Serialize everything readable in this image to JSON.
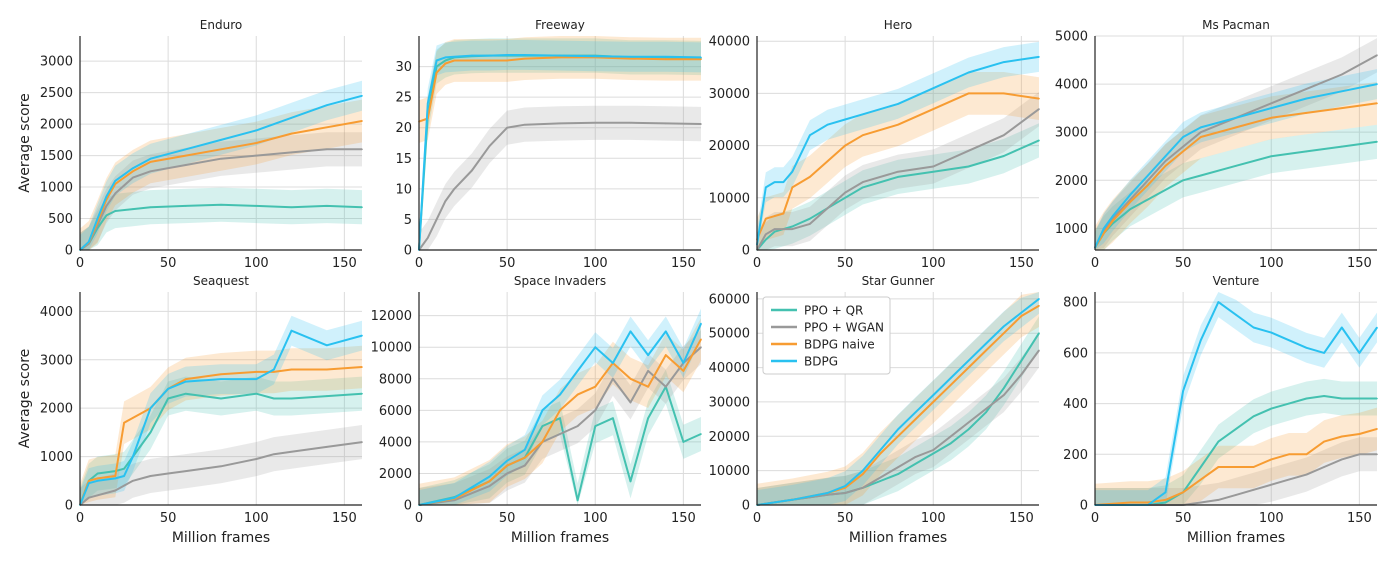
{
  "figure": {
    "ylabel": "Average score",
    "xlabel": "Million frames",
    "legend": {
      "placement": "inside Star Gunner panel, top-left",
      "entries": [
        "PPO + QR",
        "PPO + WGAN",
        "BDPG naive",
        "BDPG"
      ]
    },
    "colors": {
      "PPO + QR": "#44c1b0",
      "PPO + WGAN": "#999999",
      "BDPG naive": "#f79c32",
      "BDPG": "#29c1f0",
      "grid": "#dcdcdc",
      "axis": "#222222"
    }
  },
  "chart_data": [
    {
      "type": "line",
      "title": "Enduro",
      "xlim": [
        0,
        160
      ],
      "ylim": [
        0,
        3400
      ],
      "xticks": [
        0,
        50,
        100,
        150
      ],
      "yticks": [
        0,
        500,
        1000,
        1500,
        2000,
        2500,
        3000
      ],
      "x": [
        0,
        5,
        10,
        15,
        20,
        30,
        40,
        60,
        80,
        100,
        120,
        140,
        160
      ],
      "series": [
        {
          "name": "PPO + QR",
          "values": [
            0,
            100,
            350,
            550,
            620,
            650,
            680,
            700,
            720,
            700,
            680,
            700,
            680
          ]
        },
        {
          "name": "PPO + WGAN",
          "values": [
            0,
            100,
            400,
            700,
            900,
            1150,
            1250,
            1350,
            1450,
            1500,
            1550,
            1600,
            1600
          ]
        },
        {
          "name": "BDPG naive",
          "values": [
            0,
            120,
            450,
            800,
            1050,
            1250,
            1400,
            1500,
            1600,
            1700,
            1850,
            1950,
            2050
          ]
        },
        {
          "name": "BDPG",
          "values": [
            0,
            130,
            500,
            850,
            1100,
            1300,
            1450,
            1600,
            1750,
            1900,
            2100,
            2300,
            2450
          ]
        }
      ]
    },
    {
      "type": "line",
      "title": "Freeway",
      "xlim": [
        0,
        160
      ],
      "ylim": [
        0,
        35
      ],
      "xticks": [
        0,
        50,
        100,
        150
      ],
      "yticks": [
        0,
        5,
        10,
        15,
        20,
        25,
        30
      ],
      "x": [
        0,
        5,
        10,
        15,
        20,
        30,
        40,
        50,
        60,
        80,
        100,
        120,
        140,
        160
      ],
      "series": [
        {
          "name": "PPO + QR",
          "values": [
            0,
            22,
            30,
            31,
            31.5,
            31.7,
            31.8,
            31.8,
            31.8,
            31.8,
            31.8,
            31.5,
            31.5,
            31.4
          ]
        },
        {
          "name": "PPO + WGAN",
          "values": [
            0,
            2,
            5,
            8,
            10,
            13,
            17,
            20,
            20.5,
            20.7,
            20.8,
            20.8,
            20.7,
            20.6
          ]
        },
        {
          "name": "BDPG naive",
          "values": [
            21,
            21.5,
            29,
            30.5,
            31,
            31,
            31,
            31,
            31.3,
            31.5,
            31.5,
            31.3,
            31.2,
            31.2
          ]
        },
        {
          "name": "BDPG",
          "values": [
            0,
            24,
            31,
            31.5,
            31.6,
            31.8,
            31.8,
            31.9,
            31.9,
            31.8,
            31.7,
            31.6,
            31.6,
            31.5
          ]
        }
      ]
    },
    {
      "type": "line",
      "title": "Hero",
      "xlim": [
        0,
        160
      ],
      "ylim": [
        0,
        41000
      ],
      "xticks": [
        0,
        50,
        100,
        150
      ],
      "yticks": [
        0,
        10000,
        20000,
        30000,
        40000
      ],
      "x": [
        0,
        5,
        10,
        15,
        20,
        30,
        40,
        50,
        60,
        80,
        100,
        120,
        140,
        160
      ],
      "series": [
        {
          "name": "PPO + QR",
          "values": [
            0,
            2000,
            3500,
            4000,
            4500,
            6000,
            8000,
            10000,
            12000,
            14000,
            15000,
            16000,
            18000,
            21000
          ]
        },
        {
          "name": "PPO + WGAN",
          "values": [
            0,
            3000,
            4000,
            4000,
            4000,
            5000,
            8000,
            11000,
            13000,
            15000,
            16000,
            19000,
            22000,
            27000
          ]
        },
        {
          "name": "BDPG naive",
          "values": [
            2000,
            6000,
            6500,
            7000,
            12000,
            14000,
            17000,
            20000,
            22000,
            24000,
            27000,
            30000,
            30000,
            29000
          ]
        },
        {
          "name": "BDPG",
          "values": [
            1000,
            12000,
            13000,
            13000,
            15000,
            22000,
            24000,
            25000,
            26000,
            28000,
            31000,
            34000,
            36000,
            37000
          ]
        }
      ]
    },
    {
      "type": "line",
      "title": "Ms Pacman",
      "xlim": [
        0,
        160
      ],
      "ylim": [
        550,
        5000
      ],
      "xticks": [
        0,
        50,
        100,
        150
      ],
      "yticks": [
        1000,
        2000,
        3000,
        4000,
        5000
      ],
      "x": [
        0,
        5,
        10,
        20,
        30,
        40,
        50,
        60,
        80,
        100,
        120,
        140,
        160
      ],
      "series": [
        {
          "name": "PPO + QR",
          "values": [
            600,
            900,
            1100,
            1400,
            1600,
            1800,
            2000,
            2100,
            2300,
            2500,
            2600,
            2700,
            2800
          ]
        },
        {
          "name": "PPO + WGAN",
          "values": [
            600,
            950,
            1200,
            1600,
            2000,
            2400,
            2700,
            3000,
            3300,
            3600,
            3900,
            4200,
            4600
          ]
        },
        {
          "name": "BDPG naive",
          "values": [
            600,
            900,
            1150,
            1550,
            1900,
            2300,
            2600,
            2900,
            3100,
            3300,
            3400,
            3500,
            3600
          ]
        },
        {
          "name": "BDPG",
          "values": [
            600,
            1000,
            1250,
            1700,
            2100,
            2500,
            2900,
            3100,
            3300,
            3500,
            3700,
            3850,
            4000
          ]
        }
      ]
    },
    {
      "type": "line",
      "title": "Seaquest",
      "xlim": [
        0,
        160
      ],
      "ylim": [
        0,
        4400
      ],
      "xticks": [
        0,
        50,
        100,
        150
      ],
      "yticks": [
        0,
        1000,
        2000,
        3000,
        4000
      ],
      "x": [
        0,
        5,
        10,
        20,
        25,
        30,
        40,
        50,
        60,
        80,
        100,
        110,
        120,
        140,
        160
      ],
      "series": [
        {
          "name": "PPO + QR",
          "values": [
            0,
            500,
            650,
            700,
            750,
            1000,
            1500,
            2200,
            2300,
            2200,
            2300,
            2200,
            2200,
            2250,
            2300
          ]
        },
        {
          "name": "PPO + WGAN",
          "values": [
            0,
            150,
            200,
            300,
            400,
            500,
            600,
            650,
            700,
            800,
            950,
            1050,
            1100,
            1200,
            1300
          ]
        },
        {
          "name": "BDPG naive",
          "values": [
            0,
            500,
            550,
            600,
            1700,
            1800,
            2000,
            2400,
            2600,
            2700,
            2750,
            2750,
            2800,
            2800,
            2850
          ]
        },
        {
          "name": "BDPG",
          "values": [
            0,
            450,
            500,
            550,
            600,
            1000,
            2000,
            2400,
            2550,
            2600,
            2600,
            2800,
            3600,
            3300,
            3500
          ]
        }
      ]
    },
    {
      "type": "line",
      "title": "Space Invaders",
      "xlim": [
        0,
        160
      ],
      "ylim": [
        0,
        13500
      ],
      "xticks": [
        0,
        50,
        100,
        150
      ],
      "yticks": [
        0,
        2000,
        4000,
        6000,
        8000,
        10000,
        12000
      ],
      "x": [
        0,
        20,
        40,
        50,
        60,
        70,
        80,
        90,
        100,
        110,
        120,
        130,
        140,
        150,
        160
      ],
      "series": [
        {
          "name": "PPO + QR",
          "values": [
            0,
            500,
            1500,
            2500,
            3000,
            5000,
            5500,
            300,
            5000,
            5500,
            1500,
            5500,
            7500,
            4000,
            4500
          ]
        },
        {
          "name": "PPO + WGAN",
          "values": [
            0,
            300,
            1200,
            2000,
            2500,
            4000,
            4500,
            5000,
            6000,
            8000,
            6500,
            8500,
            7500,
            9000,
            10000
          ]
        },
        {
          "name": "BDPG naive",
          "values": [
            0,
            400,
            1500,
            2500,
            3000,
            4000,
            6000,
            7000,
            7500,
            9000,
            8000,
            7500,
            9500,
            8500,
            10500
          ]
        },
        {
          "name": "BDPG",
          "values": [
            0,
            450,
            1800,
            2800,
            3500,
            6000,
            7000,
            8500,
            10000,
            9000,
            11000,
            9500,
            11000,
            9000,
            11500
          ]
        }
      ]
    },
    {
      "type": "line",
      "title": "Star Gunner",
      "xlim": [
        0,
        160
      ],
      "ylim": [
        0,
        62000
      ],
      "xticks": [
        0,
        50,
        100,
        150
      ],
      "yticks": [
        0,
        10000,
        20000,
        30000,
        40000,
        50000,
        60000
      ],
      "x": [
        0,
        20,
        40,
        50,
        60,
        70,
        80,
        90,
        100,
        110,
        120,
        130,
        140,
        150,
        160
      ],
      "series": [
        {
          "name": "PPO + QR",
          "values": [
            0,
            1500,
            3000,
            3500,
            5000,
            7000,
            9000,
            12000,
            15000,
            18000,
            22000,
            27000,
            34000,
            42000,
            50000
          ]
        },
        {
          "name": "PPO + WGAN",
          "values": [
            0,
            1500,
            3000,
            3500,
            5000,
            8000,
            11000,
            14000,
            16000,
            20000,
            24000,
            28000,
            32000,
            38000,
            45000
          ]
        },
        {
          "name": "BDPG naive",
          "values": [
            0,
            1500,
            3500,
            5000,
            9000,
            15000,
            20000,
            25000,
            30000,
            35000,
            40000,
            45000,
            50000,
            55000,
            58000
          ]
        },
        {
          "name": "BDPG",
          "values": [
            0,
            1500,
            3500,
            5500,
            10000,
            16000,
            22000,
            27000,
            32000,
            37000,
            42000,
            47000,
            52000,
            56000,
            60000
          ]
        }
      ]
    },
    {
      "type": "line",
      "title": "Venture",
      "xlim": [
        0,
        160
      ],
      "ylim": [
        0,
        840
      ],
      "xticks": [
        0,
        50,
        100,
        150
      ],
      "yticks": [
        0,
        200,
        400,
        600,
        800
      ],
      "x": [
        0,
        20,
        30,
        40,
        50,
        60,
        70,
        80,
        90,
        100,
        110,
        120,
        130,
        140,
        150,
        160
      ],
      "series": [
        {
          "name": "PPO + QR",
          "values": [
            0,
            0,
            0,
            10,
            50,
            150,
            250,
            300,
            350,
            380,
            400,
            420,
            430,
            420,
            420,
            420
          ]
        },
        {
          "name": "PPO + WGAN",
          "values": [
            0,
            0,
            0,
            0,
            0,
            10,
            20,
            40,
            60,
            80,
            100,
            120,
            150,
            180,
            200,
            200
          ]
        },
        {
          "name": "BDPG naive",
          "values": [
            0,
            10,
            10,
            20,
            50,
            100,
            150,
            150,
            150,
            180,
            200,
            200,
            250,
            270,
            280,
            300
          ]
        },
        {
          "name": "BDPG",
          "values": [
            0,
            0,
            0,
            50,
            450,
            650,
            800,
            750,
            700,
            680,
            650,
            620,
            600,
            700,
            600,
            700
          ]
        }
      ]
    }
  ]
}
